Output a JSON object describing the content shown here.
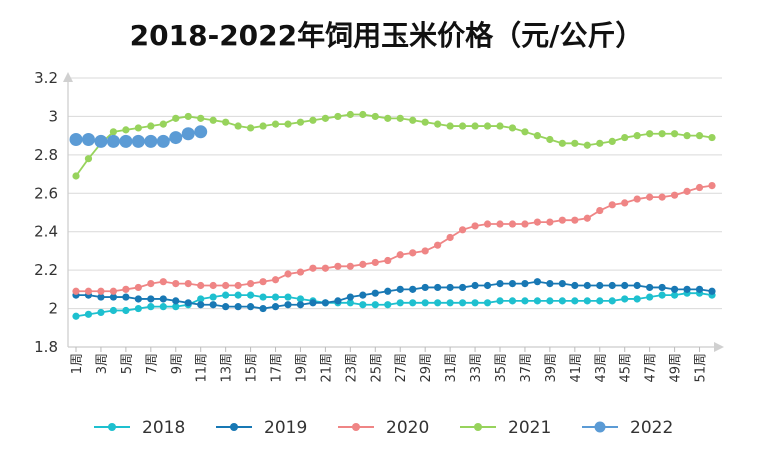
{
  "chart_data": {
    "type": "line",
    "title": "2018-2022年饲用玉米价格（元/公斤）",
    "xlabel": "",
    "ylabel": "",
    "ylim": [
      1.8,
      3.2
    ],
    "yticks": [
      "1.8",
      "2",
      "2.2",
      "2.4",
      "2.6",
      "2.8",
      "3",
      "3.2"
    ],
    "x_tick_labels": [
      "1周",
      "3周",
      "5周",
      "7周",
      "9周",
      "11周",
      "13周",
      "15周",
      "17周",
      "19周",
      "21周",
      "23周",
      "25周",
      "27周",
      "29周",
      "31周",
      "33周",
      "35周",
      "37周",
      "39周",
      "41周",
      "43周",
      "45周",
      "47周",
      "49周",
      "51周"
    ],
    "grid": true,
    "legend_position": "bottom",
    "series": [
      {
        "name": "2018",
        "color": "#1ec0cf",
        "values": [
          1.96,
          1.97,
          1.98,
          1.99,
          1.99,
          2.0,
          2.01,
          2.01,
          2.01,
          2.02,
          2.05,
          2.06,
          2.07,
          2.07,
          2.07,
          2.06,
          2.06,
          2.06,
          2.05,
          2.04,
          2.03,
          2.03,
          2.03,
          2.02,
          2.02,
          2.02,
          2.03,
          2.03,
          2.03,
          2.03,
          2.03,
          2.03,
          2.03,
          2.03,
          2.04,
          2.04,
          2.04,
          2.04,
          2.04,
          2.04,
          2.04,
          2.04,
          2.04,
          2.04,
          2.05,
          2.05,
          2.06,
          2.07,
          2.07,
          2.08,
          2.08,
          2.07
        ]
      },
      {
        "name": "2019",
        "color": "#1878b4",
        "values": [
          2.07,
          2.07,
          2.06,
          2.06,
          2.06,
          2.05,
          2.05,
          2.05,
          2.04,
          2.03,
          2.02,
          2.02,
          2.01,
          2.01,
          2.01,
          2.0,
          2.01,
          2.02,
          2.02,
          2.03,
          2.03,
          2.04,
          2.06,
          2.07,
          2.08,
          2.09,
          2.1,
          2.1,
          2.11,
          2.11,
          2.11,
          2.11,
          2.12,
          2.12,
          2.13,
          2.13,
          2.13,
          2.14,
          2.13,
          2.13,
          2.12,
          2.12,
          2.12,
          2.12,
          2.12,
          2.12,
          2.11,
          2.11,
          2.1,
          2.1,
          2.1,
          2.09
        ]
      },
      {
        "name": "2020",
        "color": "#ef8585",
        "values": [
          2.09,
          2.09,
          2.09,
          2.09,
          2.1,
          2.11,
          2.13,
          2.14,
          2.13,
          2.13,
          2.12,
          2.12,
          2.12,
          2.12,
          2.13,
          2.14,
          2.15,
          2.18,
          2.19,
          2.21,
          2.21,
          2.22,
          2.22,
          2.23,
          2.24,
          2.25,
          2.28,
          2.29,
          2.3,
          2.33,
          2.37,
          2.41,
          2.43,
          2.44,
          2.44,
          2.44,
          2.44,
          2.45,
          2.45,
          2.46,
          2.46,
          2.47,
          2.51,
          2.54,
          2.55,
          2.57,
          2.58,
          2.58,
          2.59,
          2.61,
          2.63,
          2.64
        ]
      },
      {
        "name": "2021",
        "color": "#97d35c",
        "values": [
          2.69,
          2.78,
          2.86,
          2.92,
          2.93,
          2.94,
          2.95,
          2.96,
          2.99,
          3.0,
          2.99,
          2.98,
          2.97,
          2.95,
          2.94,
          2.95,
          2.96,
          2.96,
          2.97,
          2.98,
          2.99,
          3.0,
          3.01,
          3.01,
          3.0,
          2.99,
          2.99,
          2.98,
          2.97,
          2.96,
          2.95,
          2.95,
          2.95,
          2.95,
          2.95,
          2.94,
          2.92,
          2.9,
          2.88,
          2.86,
          2.86,
          2.85,
          2.86,
          2.87,
          2.89,
          2.9,
          2.91,
          2.91,
          2.91,
          2.9,
          2.9,
          2.89
        ]
      },
      {
        "name": "2022",
        "color": "#5b9bd5",
        "values": [
          2.88,
          2.88,
          2.87,
          2.87,
          2.87,
          2.87,
          2.87,
          2.87,
          2.89,
          2.91,
          2.92
        ]
      }
    ]
  }
}
